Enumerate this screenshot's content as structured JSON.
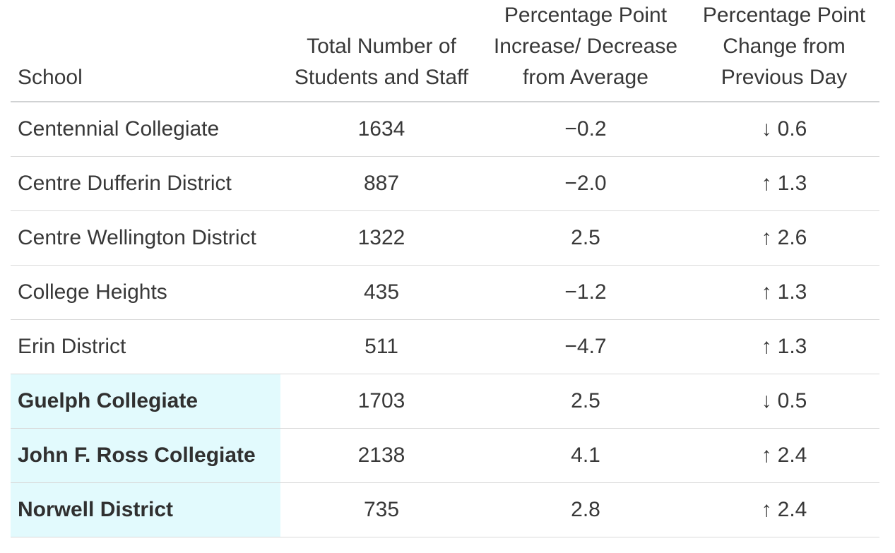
{
  "colors": {
    "highlight": "#e2fafd",
    "header_divider": "#d0d2d3",
    "row_divider": "#d8d8d8",
    "text": "#383838"
  },
  "table": {
    "columns": [
      {
        "id": "school",
        "label": "School"
      },
      {
        "id": "total",
        "label": "Total Number of\nStudents and Staff"
      },
      {
        "id": "avg_diff",
        "label": "Percentage Point\nIncrease/ Decrease\nfrom Average"
      },
      {
        "id": "day_change",
        "label": "Percentage Point\nChange from\nPrevious Day"
      }
    ],
    "rows": [
      {
        "school": "Centennial Collegiate",
        "total": "1634",
        "avg_diff": "−0.2",
        "change_dir": "down",
        "change_arrow": "↓",
        "change_value": "0.6",
        "highlighted": false
      },
      {
        "school": "Centre Dufferin District",
        "total": "887",
        "avg_diff": "−2.0",
        "change_dir": "up",
        "change_arrow": "↑",
        "change_value": "1.3",
        "highlighted": false
      },
      {
        "school": "Centre Wellington District",
        "total": "1322",
        "avg_diff": "2.5",
        "change_dir": "up",
        "change_arrow": "↑",
        "change_value": "2.6",
        "highlighted": false
      },
      {
        "school": "College Heights",
        "total": "435",
        "avg_diff": "−1.2",
        "change_dir": "up",
        "change_arrow": "↑",
        "change_value": "1.3",
        "highlighted": false
      },
      {
        "school": "Erin District",
        "total": "511",
        "avg_diff": "−4.7",
        "change_dir": "up",
        "change_arrow": "↑",
        "change_value": "1.3",
        "highlighted": false
      },
      {
        "school": "Guelph Collegiate",
        "total": "1703",
        "avg_diff": "2.5",
        "change_dir": "down",
        "change_arrow": "↓",
        "change_value": "0.5",
        "highlighted": true
      },
      {
        "school": "John F. Ross Collegiate",
        "total": "2138",
        "avg_diff": "4.1",
        "change_dir": "up",
        "change_arrow": "↑",
        "change_value": "2.4",
        "highlighted": true
      },
      {
        "school": "Norwell District",
        "total": "735",
        "avg_diff": "2.8",
        "change_dir": "up",
        "change_arrow": "↑",
        "change_value": "2.4",
        "highlighted": true
      }
    ]
  },
  "chart_data": {
    "type": "table",
    "columns": [
      "School",
      "Total Number of Students and Staff",
      "Percentage Point Increase/ Decrease from Average",
      "Percentage Point Change from Previous Day"
    ],
    "rows": [
      [
        "Centennial Collegiate",
        1634,
        -0.2,
        "down 0.6"
      ],
      [
        "Centre Dufferin District",
        887,
        -2.0,
        "up 1.3"
      ],
      [
        "Centre Wellington District",
        1322,
        2.5,
        "up 2.6"
      ],
      [
        "College Heights",
        435,
        -1.2,
        "up 1.3"
      ],
      [
        "Erin District",
        511,
        -4.7,
        "up 1.3"
      ],
      [
        "Guelph Collegiate",
        1703,
        2.5,
        "down 0.5"
      ],
      [
        "John F. Ross Collegiate",
        2138,
        4.1,
        "up 2.4"
      ],
      [
        "Norwell District",
        735,
        2.8,
        "up 2.4"
      ]
    ],
    "highlighted_rows": [
      "Guelph Collegiate",
      "John F. Ross Collegiate",
      "Norwell District"
    ],
    "notes": "Highlighted rows shade only the School column cell in pale cyan with bold school names."
  }
}
